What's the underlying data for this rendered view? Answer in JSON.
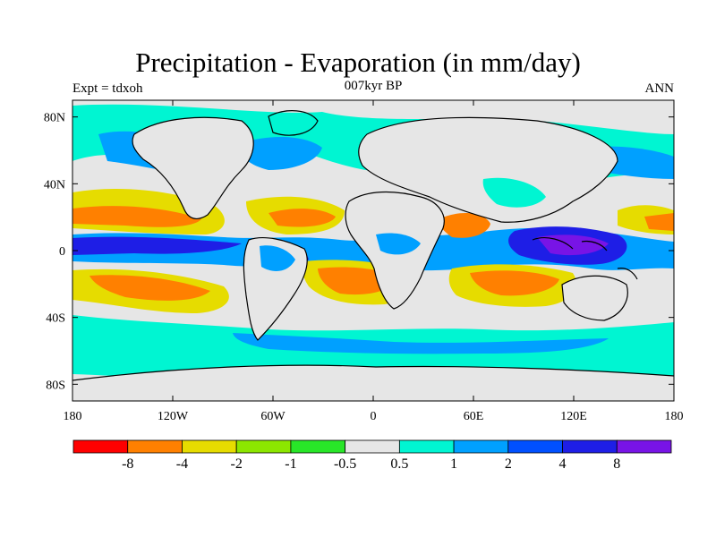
{
  "title": "Precipitation - Evaporation (in mm/day)",
  "subtitle_left": "Expt = tdxoh",
  "subtitle_center": "007kyr BP",
  "subtitle_right": "ANN",
  "map": {
    "projection": "cylindrical-equidistant",
    "lon_range": [
      -180,
      180
    ],
    "lat_range": [
      -90,
      90
    ],
    "lat_ticks": [
      {
        "lat": 80,
        "label": "80N"
      },
      {
        "lat": 40,
        "label": "40N"
      },
      {
        "lat": 0,
        "label": "0"
      },
      {
        "lat": -40,
        "label": "40S"
      },
      {
        "lat": -80,
        "label": "80S"
      }
    ],
    "lon_ticks": [
      {
        "lon": -180,
        "label": "180"
      },
      {
        "lon": -120,
        "label": "120W"
      },
      {
        "lon": -60,
        "label": "60W"
      },
      {
        "lon": 0,
        "label": "0"
      },
      {
        "lon": 60,
        "label": "60E"
      },
      {
        "lon": 120,
        "label": "120E"
      },
      {
        "lon": 180,
        "label": "180"
      }
    ],
    "background_color": "#e6e6e6"
  },
  "legend": {
    "colors": [
      "#ff0000",
      "#ff8000",
      "#e6dc00",
      "#8ce600",
      "#28e628",
      "#e6e6e6",
      "#00f5d2",
      "#00a0ff",
      "#0050ff",
      "#1e1ee6",
      "#7814e6"
    ],
    "labels": [
      "-8",
      "-4",
      "-2",
      "-1",
      "-0.5",
      "0.5",
      "1",
      "2",
      "4",
      "8"
    ]
  }
}
